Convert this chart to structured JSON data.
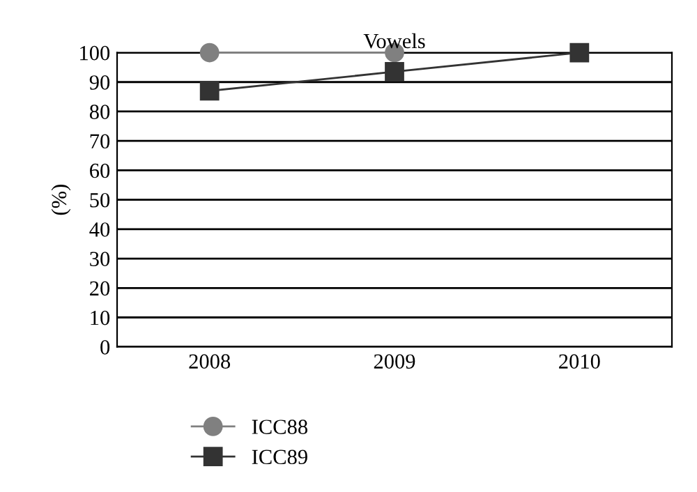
{
  "chart_data": {
    "type": "line",
    "title": "Vowels",
    "ylabel": "(%)",
    "categories": [
      "2008",
      "2009",
      "2010"
    ],
    "series": [
      {
        "name": "ICC88",
        "color": "#808080",
        "values": [
          100,
          100,
          null
        ],
        "marker": "circle"
      },
      {
        "name": "ICC89",
        "color": "#333333",
        "values": [
          87,
          93.5,
          100
        ],
        "marker": "square"
      }
    ],
    "ylim": [
      0,
      100
    ],
    "yticks": [
      0,
      10,
      20,
      30,
      40,
      50,
      60,
      70,
      80,
      90,
      100
    ],
    "grid": "y",
    "legend": "bottom left",
    "line_style": "solid"
  }
}
